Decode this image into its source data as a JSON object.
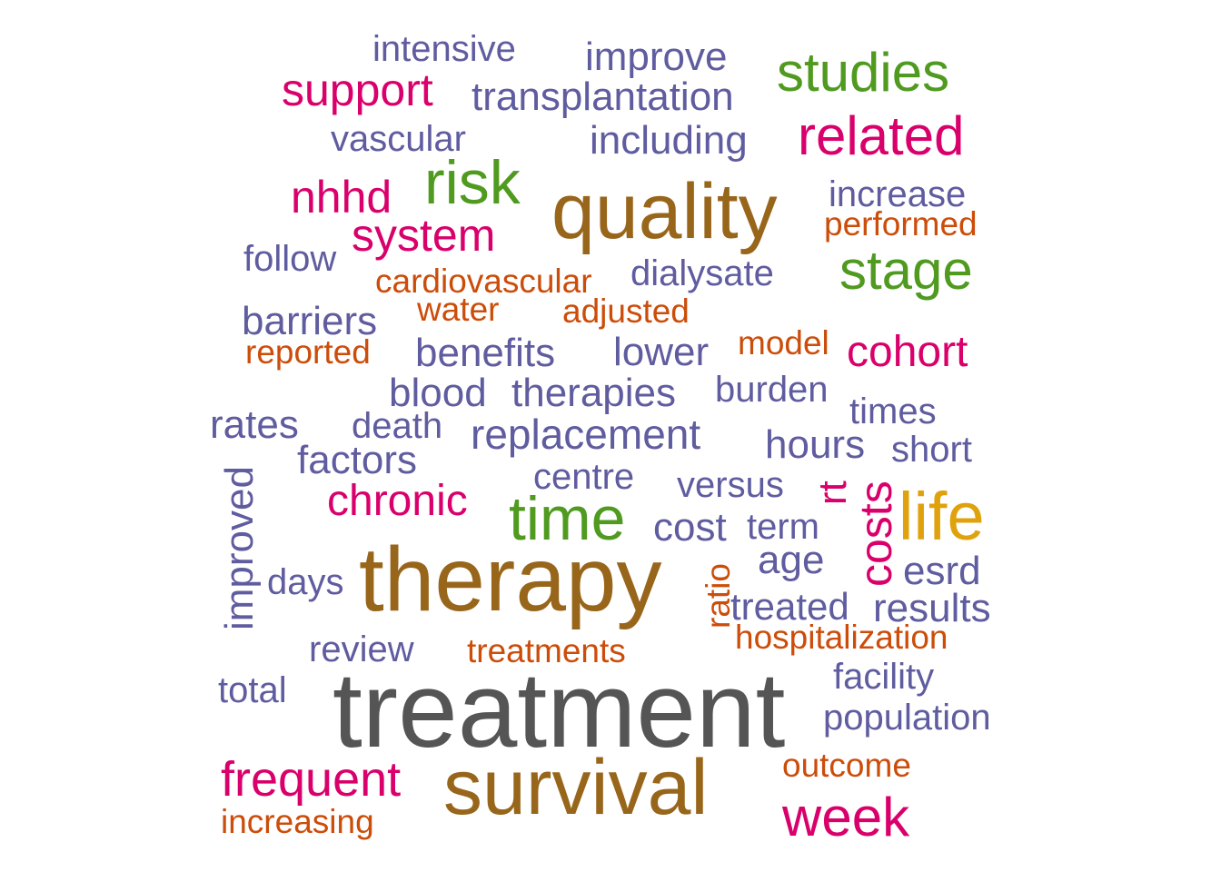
{
  "colors": {
    "gray": "#555555",
    "brown": "#98661B",
    "green": "#4F9A1F",
    "magenta": "#D9006C",
    "purple": "#5F5C9F",
    "orange": "#CC4D0A",
    "gold": "#E0A20C"
  },
  "words": [
    {
      "text": "treatment",
      "color": "gray",
      "weight": 10.0
    },
    {
      "text": "therapy",
      "color": "brown",
      "weight": 8.6
    },
    {
      "text": "survival",
      "color": "brown",
      "weight": 7.4
    },
    {
      "text": "quality",
      "color": "brown",
      "weight": 7.4
    },
    {
      "text": "life",
      "color": "gold",
      "weight": 6.5
    },
    {
      "text": "time",
      "color": "green",
      "weight": 6.0
    },
    {
      "text": "risk",
      "color": "green",
      "weight": 5.6
    },
    {
      "text": "stage",
      "color": "green",
      "weight": 5.0
    },
    {
      "text": "studies",
      "color": "green",
      "weight": 5.0
    },
    {
      "text": "related",
      "color": "magenta",
      "weight": 5.0
    },
    {
      "text": "week",
      "color": "magenta",
      "weight": 5.0
    },
    {
      "text": "frequent",
      "color": "magenta",
      "weight": 4.6
    },
    {
      "text": "costs",
      "color": "magenta",
      "weight": 4.6
    },
    {
      "text": "support",
      "color": "magenta",
      "weight": 4.4
    },
    {
      "text": "system",
      "color": "magenta",
      "weight": 4.4
    },
    {
      "text": "nhhd",
      "color": "magenta",
      "weight": 4.4
    },
    {
      "text": "chronic",
      "color": "magenta",
      "weight": 4.4
    },
    {
      "text": "cohort",
      "color": "magenta",
      "weight": 4.4
    },
    {
      "text": "rt",
      "color": "magenta",
      "weight": 4.0
    },
    {
      "text": "replacement",
      "color": "purple",
      "weight": 4.0
    },
    {
      "text": "benefits",
      "color": "purple",
      "weight": 3.9
    },
    {
      "text": "including",
      "color": "purple",
      "weight": 3.9
    },
    {
      "text": "improve",
      "color": "purple",
      "weight": 3.9
    },
    {
      "text": "transplantation",
      "color": "purple",
      "weight": 3.9
    },
    {
      "text": "barriers",
      "color": "purple",
      "weight": 3.9
    },
    {
      "text": "lower",
      "color": "purple",
      "weight": 3.9
    },
    {
      "text": "blood",
      "color": "purple",
      "weight": 3.9
    },
    {
      "text": "therapies",
      "color": "purple",
      "weight": 3.9
    },
    {
      "text": "rates",
      "color": "purple",
      "weight": 3.9
    },
    {
      "text": "factors",
      "color": "purple",
      "weight": 3.9
    },
    {
      "text": "hours",
      "color": "purple",
      "weight": 3.9
    },
    {
      "text": "cost",
      "color": "purple",
      "weight": 3.9
    },
    {
      "text": "improved",
      "color": "purple",
      "weight": 3.9
    },
    {
      "text": "esrd",
      "color": "purple",
      "weight": 3.9
    },
    {
      "text": "results",
      "color": "purple",
      "weight": 3.9
    },
    {
      "text": "age",
      "color": "purple",
      "weight": 3.9
    },
    {
      "text": "treated",
      "color": "purple",
      "weight": 3.7
    },
    {
      "text": "vascular",
      "color": "purple",
      "weight": 3.6
    },
    {
      "text": "intensive",
      "color": "purple",
      "weight": 3.6
    },
    {
      "text": "increase",
      "color": "purple",
      "weight": 3.6
    },
    {
      "text": "follow",
      "color": "purple",
      "weight": 3.6
    },
    {
      "text": "dialysate",
      "color": "purple",
      "weight": 3.6
    },
    {
      "text": "death",
      "color": "purple",
      "weight": 3.6
    },
    {
      "text": "times",
      "color": "purple",
      "weight": 3.6
    },
    {
      "text": "burden",
      "color": "purple",
      "weight": 3.6
    },
    {
      "text": "short",
      "color": "purple",
      "weight": 3.6
    },
    {
      "text": "centre",
      "color": "purple",
      "weight": 3.6
    },
    {
      "text": "versus",
      "color": "purple",
      "weight": 3.6
    },
    {
      "text": "term",
      "color": "purple",
      "weight": 3.6
    },
    {
      "text": "days",
      "color": "purple",
      "weight": 3.6
    },
    {
      "text": "review",
      "color": "purple",
      "weight": 3.6
    },
    {
      "text": "total",
      "color": "purple",
      "weight": 3.6
    },
    {
      "text": "facility",
      "color": "purple",
      "weight": 3.6
    },
    {
      "text": "population",
      "color": "purple",
      "weight": 3.6
    },
    {
      "text": "performed",
      "color": "orange",
      "weight": 3.4
    },
    {
      "text": "cardiovascular",
      "color": "orange",
      "weight": 3.4
    },
    {
      "text": "water",
      "color": "orange",
      "weight": 3.4
    },
    {
      "text": "adjusted",
      "color": "orange",
      "weight": 3.4
    },
    {
      "text": "reported",
      "color": "orange",
      "weight": 3.4
    },
    {
      "text": "model",
      "color": "orange",
      "weight": 3.4
    },
    {
      "text": "ratio",
      "color": "orange",
      "weight": 3.4
    },
    {
      "text": "hospitalization",
      "color": "orange",
      "weight": 3.4
    },
    {
      "text": "treatments",
      "color": "orange",
      "weight": 3.4
    },
    {
      "text": "outcome",
      "color": "orange",
      "weight": 3.4
    },
    {
      "text": "increasing",
      "color": "orange",
      "weight": 3.4
    }
  ]
}
